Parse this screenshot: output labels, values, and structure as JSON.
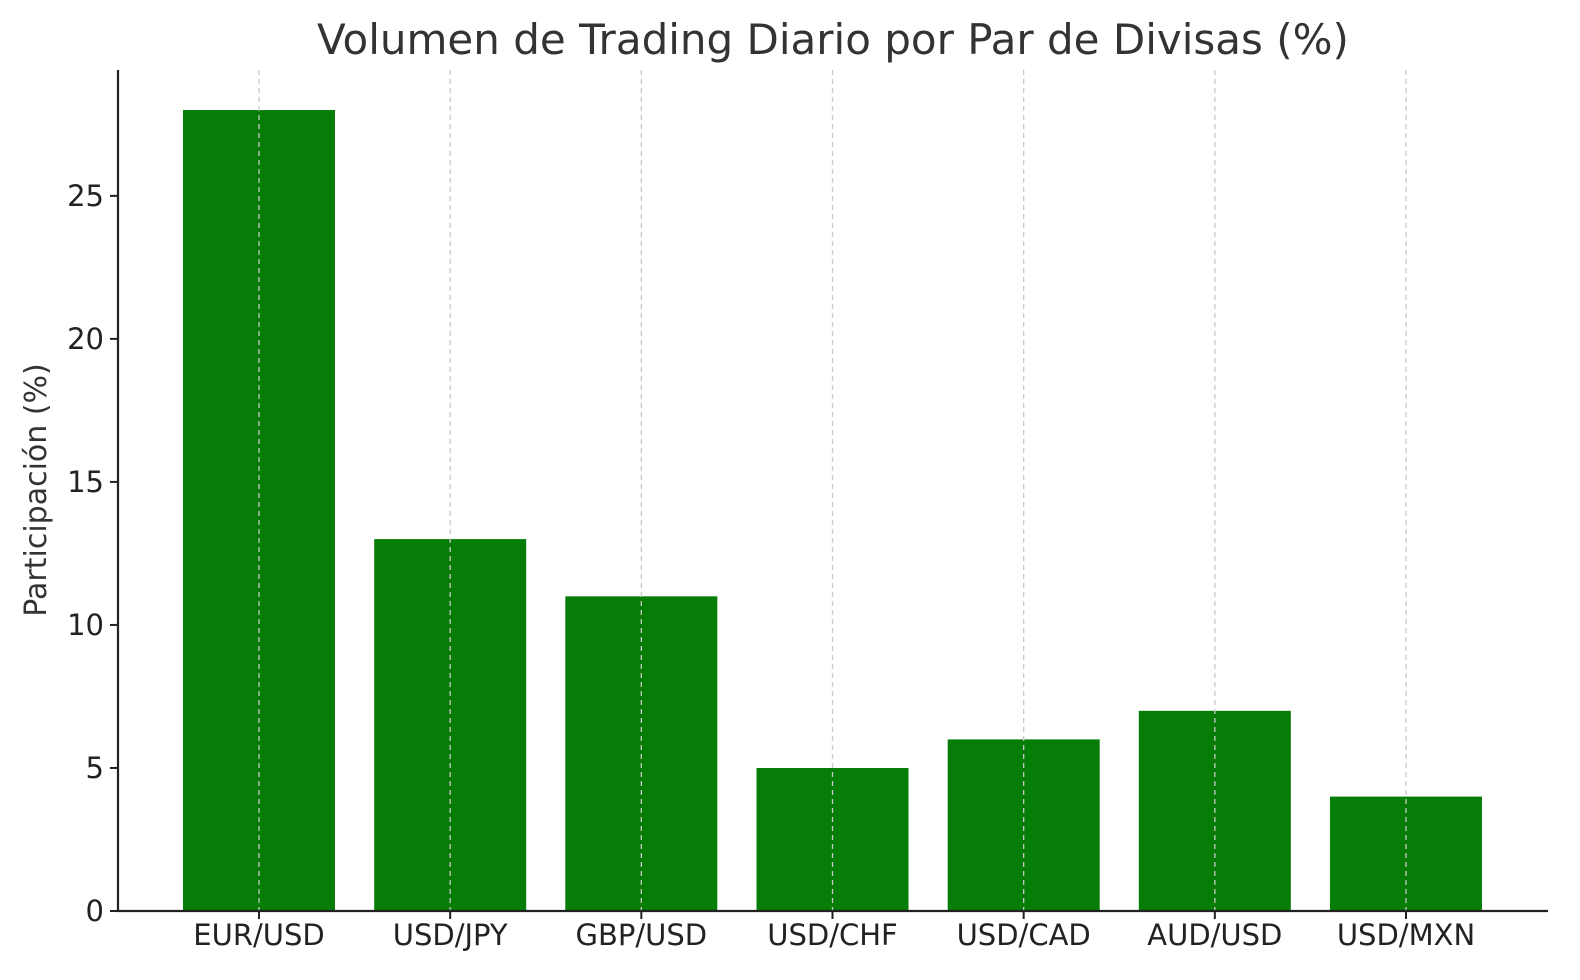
{
  "chart_data": {
    "type": "bar",
    "title": "Volumen de Trading Diario por Par de Divisas (%)",
    "xlabel": "",
    "ylabel": "Participación (%)",
    "categories": [
      "EUR/USD",
      "USD/JPY",
      "GBP/USD",
      "USD/CHF",
      "USD/CAD",
      "AUD/USD",
      "USD/MXN"
    ],
    "values": [
      28,
      13,
      11,
      5,
      6,
      7,
      4
    ],
    "ylim": [
      0,
      29.4
    ],
    "yticks": [
      0,
      5,
      10,
      15,
      20,
      25
    ],
    "grid": "x-dashed",
    "legend": "none",
    "colors": {
      "bar": "#067d06",
      "axis": "#222222",
      "grid": "#c8c8c8",
      "text": "#333333"
    }
  }
}
